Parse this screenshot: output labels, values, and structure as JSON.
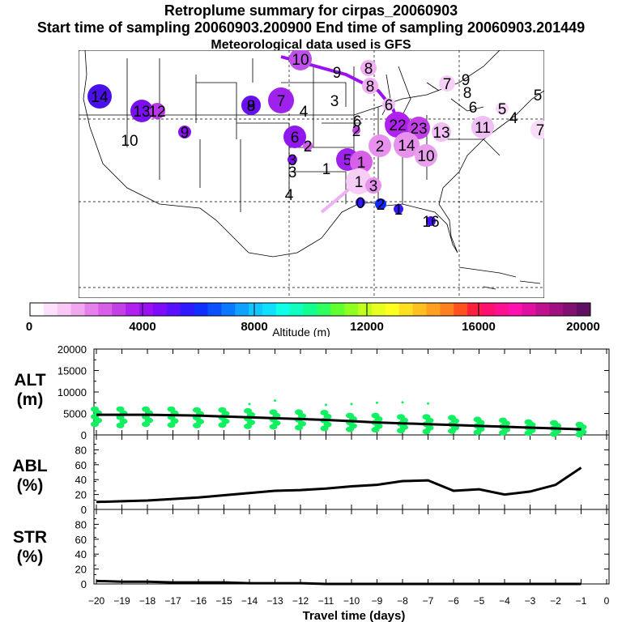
{
  "header": {
    "title": "Retroplume summary for cirpas_20060903",
    "sampling": "Start time of sampling 20060903.200900     End time of sampling 20060903.201449",
    "met": "Meteorological data used is GFS"
  },
  "colorbar": {
    "ticks": [
      "0",
      "4000",
      "8000",
      "12000",
      "16000",
      "20000"
    ],
    "label": "Altitude (m)",
    "colors": [
      "#ffffff",
      "#fde0fb",
      "#f9c8f6",
      "#f2a8f0",
      "#e680ec",
      "#d860e8",
      "#c340e6",
      "#b020ee",
      "#9a10f2",
      "#7f0cf8",
      "#5a10ff",
      "#3018ff",
      "#1030ff",
      "#0a50ff",
      "#0a78ff",
      "#10a0ff",
      "#10c8ff",
      "#10e0ff",
      "#10ffe8",
      "#10ffc0",
      "#10ff90",
      "#30ff60",
      "#60ff30",
      "#90ff20",
      "#c0ff20",
      "#e8ff20",
      "#ffff20",
      "#ffe020",
      "#ffc020",
      "#ffa020",
      "#ff8020",
      "#ff5020",
      "#ff2040",
      "#ff1070",
      "#ff1090",
      "#ff10b0",
      "#e010a0",
      "#c01090",
      "#a01080",
      "#801070",
      "#601060"
    ]
  },
  "map_labels": [
    {
      "t": "14",
      "x": 26,
      "y": 57,
      "c": "#4a10e8",
      "r": 15
    },
    {
      "t": "13",
      "x": 78,
      "y": 75,
      "c": "#7a10f0",
      "r": 14
    },
    {
      "t": "12",
      "x": 97,
      "y": 75,
      "c": "#b838e8",
      "r": 10
    },
    {
      "t": "10",
      "x": 63,
      "y": 111,
      "c": "#e8a0ee",
      "r": 0
    },
    {
      "t": "9",
      "x": 131,
      "y": 101,
      "c": "#8a10ee",
      "r": 8
    },
    {
      "t": "9",
      "x": 213,
      "y": 68,
      "c": "#6a10f0",
      "r": 12
    },
    {
      "t": "8",
      "x": 213,
      "y": 68,
      "c": "#6a10f0",
      "r": 0
    },
    {
      "t": "7",
      "x": 250,
      "y": 62,
      "c": "#a020ee",
      "r": 16
    },
    {
      "t": "10",
      "x": 274,
      "y": 11,
      "c": "#c050ec",
      "r": 14
    },
    {
      "t": "4",
      "x": 278,
      "y": 75,
      "c": "#ffffff",
      "r": 0
    },
    {
      "t": "3",
      "x": 316,
      "y": 62,
      "c": "#ffffff",
      "r": 0
    },
    {
      "t": "9",
      "x": 319,
      "y": 27,
      "c": "#ffffff",
      "r": 0
    },
    {
      "t": "8",
      "x": 358,
      "y": 22,
      "c": "#f0b0f2",
      "r": 10
    },
    {
      "t": "8",
      "x": 360,
      "y": 44,
      "c": "#f0b0f2",
      "r": 10
    },
    {
      "t": "6",
      "x": 383,
      "y": 67,
      "c": "#f0c0f4",
      "r": 8
    },
    {
      "t": "7",
      "x": 455,
      "y": 41,
      "c": "#f6d0f6",
      "r": 10
    },
    {
      "t": "9",
      "x": 478,
      "y": 36,
      "c": "#ffffff",
      "r": 0
    },
    {
      "t": "8",
      "x": 480,
      "y": 52,
      "c": "#ffffff",
      "r": 0
    },
    {
      "t": "6",
      "x": 487,
      "y": 70,
      "c": "#ffffff",
      "r": 0
    },
    {
      "t": "5",
      "x": 523,
      "y": 72,
      "c": "#f8d8f8",
      "r": 8
    },
    {
      "t": "4",
      "x": 537,
      "y": 83,
      "c": "#ffffff",
      "r": 0
    },
    {
      "t": "5",
      "x": 567,
      "y": 55,
      "c": "#ffffff",
      "r": 0
    },
    {
      "t": "7",
      "x": 570,
      "y": 98,
      "c": "#f8dcf8",
      "r": 12
    },
    {
      "t": "11",
      "x": 499,
      "y": 95,
      "c": "#f0c0f4",
      "r": 14
    },
    {
      "t": "6",
      "x": 267,
      "y": 107,
      "c": "#9018ee",
      "r": 14
    },
    {
      "t": "2",
      "x": 283,
      "y": 118,
      "c": "#d060e8",
      "r": 6
    },
    {
      "t": "6",
      "x": 344,
      "y": 87,
      "c": "#ffffff",
      "r": 0
    },
    {
      "t": "2",
      "x": 343,
      "y": 99,
      "c": "#c040e6",
      "r": 5
    },
    {
      "t": "22",
      "x": 394,
      "y": 92,
      "c": "#b020ee",
      "r": 16
    },
    {
      "t": "23",
      "x": 420,
      "y": 96,
      "c": "#c040e6",
      "r": 14
    },
    {
      "t": "13",
      "x": 448,
      "y": 101,
      "c": "#f0c0f4",
      "r": 12
    },
    {
      "t": "14",
      "x": 405,
      "y": 117,
      "c": "#e890ee",
      "r": 16
    },
    {
      "t": "10",
      "x": 429,
      "y": 130,
      "c": "#e8a0ee",
      "r": 14
    },
    {
      "t": "2",
      "x": 372,
      "y": 118,
      "c": "#e890ee",
      "r": 14
    },
    {
      "t": "5",
      "x": 332,
      "y": 135,
      "c": "#a020ee",
      "r": 14
    },
    {
      "t": "1",
      "x": 349,
      "y": 138,
      "c": "#d860e8",
      "r": 14
    },
    {
      "t": "1",
      "x": 346,
      "y": 162,
      "c": "#f6cdf6",
      "r": 16
    },
    {
      "t": "3",
      "x": 264,
      "y": 135,
      "c": "#7a10f0",
      "r": 6
    },
    {
      "t": "3",
      "x": 264,
      "y": 150,
      "c": "#ffffff",
      "r": 0
    },
    {
      "t": "1",
      "x": 306,
      "y": 146,
      "c": "#ffffff",
      "r": 0
    },
    {
      "t": "4",
      "x": 260,
      "y": 178,
      "c": "#ffffff",
      "r": 0
    },
    {
      "t": "3",
      "x": 364,
      "y": 167,
      "c": "#e890ee",
      "r": 10
    },
    {
      "t": "0",
      "x": 348,
      "y": 188,
      "c": "#3018ff",
      "r": 6
    },
    {
      "t": "2",
      "x": 373,
      "y": 190,
      "c": "#1028ff",
      "r": 7
    },
    {
      "t": "1",
      "x": 395,
      "y": 196,
      "c": "#3018ff",
      "r": 6
    },
    {
      "t": "16",
      "x": 435,
      "y": 211,
      "c": "#4010ff",
      "r": 6
    }
  ],
  "chart_data": [
    {
      "type": "line",
      "name": "altitude",
      "ylabel_lines": [
        "ALT",
        "(m)"
      ],
      "ylim": [
        0,
        20000
      ],
      "yticks": [
        "20000",
        "15000",
        "10000",
        "5000",
        "0"
      ],
      "series": [
        {
          "name": "mean altitude",
          "x": [
            -20,
            -19,
            -18,
            -17,
            -16,
            -15,
            -14,
            -13,
            -12,
            -11,
            -10,
            -9,
            -8,
            -7,
            -6,
            -5,
            -4,
            -3,
            -2,
            -1
          ],
          "y": [
            4700,
            4700,
            4700,
            4600,
            4500,
            4300,
            4100,
            3900,
            3700,
            3500,
            3200,
            2900,
            2700,
            2500,
            2300,
            2100,
            1900,
            1700,
            1500,
            1300
          ]
        },
        {
          "name": "particle scatter",
          "x": [
            -20,
            -19,
            -18,
            -17,
            -16,
            -15,
            -14,
            -13,
            -12,
            -11,
            -10,
            -9,
            -8,
            -7,
            -6,
            -5,
            -4,
            -3,
            -2,
            -1
          ],
          "ymin": [
            2500,
            2200,
            2500,
            2300,
            2200,
            2300,
            2000,
            1900,
            1700,
            1500,
            1300,
            1200,
            1000,
            800,
            900,
            600,
            500,
            400,
            200,
            100
          ],
          "ymax": [
            6000,
            6000,
            6000,
            6000,
            5800,
            5800,
            5600,
            5300,
            5300,
            5200,
            4500,
            4500,
            4200,
            4200,
            4000,
            3600,
            3400,
            3000,
            2800,
            2400
          ],
          "outliers": [
            [
              -14,
              7200
            ],
            [
              -13,
              8000
            ],
            [
              -11,
              7000
            ],
            [
              -10,
              7200
            ],
            [
              -9,
              7500
            ],
            [
              -8,
              7600
            ],
            [
              -7,
              7300
            ]
          ]
        }
      ]
    },
    {
      "type": "line",
      "name": "abl",
      "ylabel_lines": [
        "ABL",
        "(%)"
      ],
      "ylim": [
        0,
        100
      ],
      "yticks": [
        "80",
        "60",
        "40",
        "20",
        "0"
      ],
      "x": [
        -20,
        -19,
        -18,
        -17,
        -16,
        -15,
        -14,
        -13,
        -12,
        -11,
        -10,
        -9,
        -8,
        -7,
        -6,
        -5,
        -4,
        -3,
        -2,
        -1
      ],
      "y": [
        10,
        11,
        12,
        14,
        16,
        19,
        22,
        25,
        26,
        28,
        31,
        33,
        38,
        39,
        25,
        27,
        20,
        24,
        33,
        56
      ]
    },
    {
      "type": "line",
      "name": "str",
      "ylabel_lines": [
        "STR",
        "(%)"
      ],
      "ylim": [
        0,
        100
      ],
      "yticks": [
        "80",
        "60",
        "40",
        "20",
        "0"
      ],
      "x": [
        -20,
        -19,
        -18,
        -17,
        -16,
        -15,
        -14,
        -13,
        -12,
        -11,
        -10,
        -9,
        -8,
        -7,
        -6,
        -5,
        -4,
        -3,
        -2,
        -1
      ],
      "y": [
        4,
        3,
        3,
        2,
        2,
        2,
        1,
        1,
        1,
        0,
        0,
        0,
        0,
        0,
        0,
        0,
        0,
        0,
        0,
        0
      ]
    }
  ],
  "xaxis": {
    "label": "Travel time (days)",
    "ticks": [
      "−20",
      "−19",
      "−18",
      "−17",
      "−16",
      "−15",
      "−14",
      "−13",
      "−12",
      "−11",
      "−10",
      "−9",
      "−8",
      "−7",
      "−6",
      "−5",
      "−4",
      "−3",
      "−2",
      "−1",
      "0"
    ]
  }
}
